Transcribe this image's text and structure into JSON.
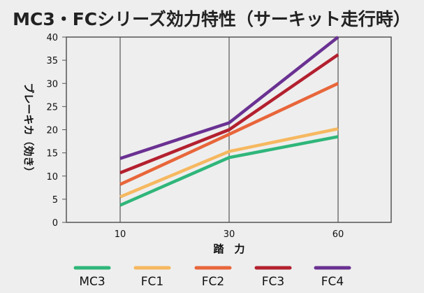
{
  "chart_data": {
    "type": "line",
    "title": "MC3・FCシリーズ効力特性（サーキット走行時）",
    "xlabel": "踏　力",
    "ylabel": "ブレーキカ（効き）",
    "x": [
      10,
      30,
      60
    ],
    "x_ticks": [
      "10",
      "30",
      "60"
    ],
    "y_ticks": [
      "0",
      "5",
      "10",
      "15",
      "20",
      "25",
      "30",
      "35",
      "40"
    ],
    "ylim": [
      0,
      40
    ],
    "grid": true,
    "legend_position": "bottom",
    "series": [
      {
        "name": "MC3",
        "color": "#2fb67a",
        "values": [
          3.7,
          14.0,
          18.5
        ]
      },
      {
        "name": "FC1",
        "color": "#f6b860",
        "values": [
          5.5,
          15.3,
          20.2
        ]
      },
      {
        "name": "FC2",
        "color": "#e8663a",
        "values": [
          8.2,
          19.0,
          30.0
        ]
      },
      {
        "name": "FC3",
        "color": "#b3202f",
        "values": [
          10.7,
          20.0,
          36.2
        ]
      },
      {
        "name": "FC4",
        "color": "#6a3192",
        "values": [
          13.8,
          21.5,
          40.0
        ]
      }
    ]
  }
}
